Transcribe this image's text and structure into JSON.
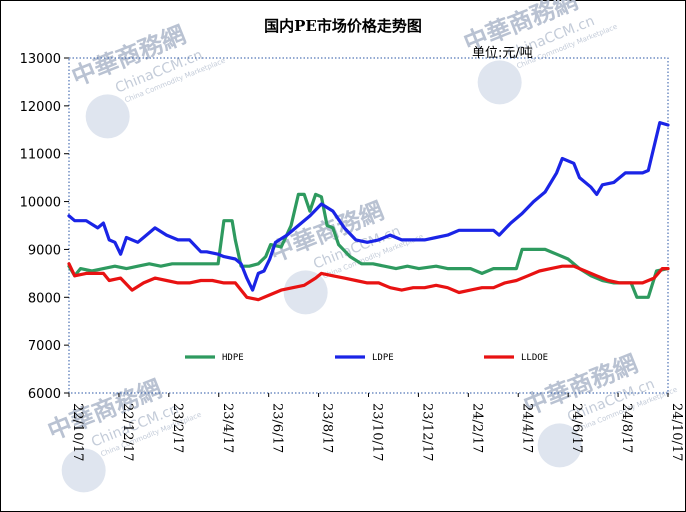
{
  "chart_data": {
    "type": "line",
    "title": "国内PE市场价格走势图",
    "unit_label": "单位:元/吨",
    "ylim": [
      6000,
      13000
    ],
    "yticks": [
      6000,
      7000,
      8000,
      9000,
      10000,
      11000,
      12000,
      13000
    ],
    "xlim": [
      "2022-10-17",
      "2024-10-17"
    ],
    "xtick_labels": [
      "22/10/17",
      "22/12/17",
      "23/2/17",
      "23/4/17",
      "23/6/17",
      "23/8/17",
      "23/10/17",
      "23/12/17",
      "24/2/17",
      "24/4/17",
      "24/6/17",
      "24/8/17",
      "24/10/17"
    ],
    "legend_position": "bottom-inside",
    "grid": false,
    "series": [
      {
        "name": "HDPE",
        "color": "#2e9a5f",
        "points": [
          [
            "2022-10-17",
            8650
          ],
          [
            "2022-10-24",
            8450
          ],
          [
            "2022-10-31",
            8600
          ],
          [
            "2022-11-14",
            8550
          ],
          [
            "2022-11-28",
            8600
          ],
          [
            "2022-12-12",
            8650
          ],
          [
            "2022-12-26",
            8600
          ],
          [
            "2023-01-09",
            8650
          ],
          [
            "2023-01-23",
            8700
          ],
          [
            "2023-02-06",
            8650
          ],
          [
            "2023-02-20",
            8700
          ],
          [
            "2023-03-06",
            8700
          ],
          [
            "2023-03-20",
            8700
          ],
          [
            "2023-04-03",
            8700
          ],
          [
            "2023-04-17",
            8700
          ],
          [
            "2023-04-24",
            9600
          ],
          [
            "2023-05-04",
            9600
          ],
          [
            "2023-05-08",
            9200
          ],
          [
            "2023-05-15",
            8650
          ],
          [
            "2023-05-25",
            8650
          ],
          [
            "2023-06-05",
            8700
          ],
          [
            "2023-06-14",
            8850
          ],
          [
            "2023-06-20",
            9100
          ],
          [
            "2023-07-03",
            9050
          ],
          [
            "2023-07-15",
            9500
          ],
          [
            "2023-07-24",
            10150
          ],
          [
            "2023-07-31",
            10150
          ],
          [
            "2023-08-07",
            9800
          ],
          [
            "2023-08-14",
            10150
          ],
          [
            "2023-08-21",
            10100
          ],
          [
            "2023-08-28",
            9500
          ],
          [
            "2023-09-04",
            9450
          ],
          [
            "2023-09-11",
            9100
          ],
          [
            "2023-09-25",
            8850
          ],
          [
            "2023-10-09",
            8700
          ],
          [
            "2023-10-23",
            8700
          ],
          [
            "2023-11-06",
            8650
          ],
          [
            "2023-11-20",
            8600
          ],
          [
            "2023-12-04",
            8650
          ],
          [
            "2023-12-18",
            8600
          ],
          [
            "2024-01-08",
            8650
          ],
          [
            "2024-01-22",
            8600
          ],
          [
            "2024-02-05",
            8600
          ],
          [
            "2024-02-19",
            8600
          ],
          [
            "2024-03-04",
            8500
          ],
          [
            "2024-03-18",
            8600
          ],
          [
            "2024-04-01",
            8600
          ],
          [
            "2024-04-15",
            8600
          ],
          [
            "2024-04-22",
            9000
          ],
          [
            "2024-05-06",
            9000
          ],
          [
            "2024-05-20",
            9000
          ],
          [
            "2024-06-03",
            8900
          ],
          [
            "2024-06-17",
            8800
          ],
          [
            "2024-07-01",
            8600
          ],
          [
            "2024-07-15",
            8450
          ],
          [
            "2024-07-29",
            8350
          ],
          [
            "2024-08-12",
            8300
          ],
          [
            "2024-08-26",
            8300
          ],
          [
            "2024-09-02",
            8300
          ],
          [
            "2024-09-09",
            8000
          ],
          [
            "2024-09-23",
            8000
          ],
          [
            "2024-10-03",
            8550
          ],
          [
            "2024-10-17",
            8600
          ]
        ]
      },
      {
        "name": "LDPE",
        "color": "#1a24e6",
        "points": [
          [
            "2022-10-17",
            9700
          ],
          [
            "2022-10-24",
            9600
          ],
          [
            "2022-11-07",
            9600
          ],
          [
            "2022-11-21",
            9450
          ],
          [
            "2022-11-28",
            9550
          ],
          [
            "2022-12-05",
            9200
          ],
          [
            "2022-12-12",
            9150
          ],
          [
            "2022-12-19",
            8900
          ],
          [
            "2022-12-26",
            9250
          ],
          [
            "2023-01-09",
            9150
          ],
          [
            "2023-01-16",
            9250
          ],
          [
            "2023-01-30",
            9450
          ],
          [
            "2023-02-13",
            9300
          ],
          [
            "2023-02-27",
            9200
          ],
          [
            "2023-03-13",
            9200
          ],
          [
            "2023-03-27",
            8950
          ],
          [
            "2023-04-03",
            8950
          ],
          [
            "2023-04-17",
            8900
          ],
          [
            "2023-04-24",
            8850
          ],
          [
            "2023-05-08",
            8800
          ],
          [
            "2023-05-15",
            8700
          ],
          [
            "2023-05-22",
            8400
          ],
          [
            "2023-05-29",
            8150
          ],
          [
            "2023-06-05",
            8500
          ],
          [
            "2023-06-12",
            8550
          ],
          [
            "2023-06-19",
            8800
          ],
          [
            "2023-06-26",
            9150
          ],
          [
            "2023-07-10",
            9300
          ],
          [
            "2023-07-24",
            9500
          ],
          [
            "2023-08-07",
            9700
          ],
          [
            "2023-08-21",
            9950
          ],
          [
            "2023-09-04",
            9800
          ],
          [
            "2023-09-18",
            9450
          ],
          [
            "2023-10-02",
            9200
          ],
          [
            "2023-10-16",
            9150
          ],
          [
            "2023-10-30",
            9200
          ],
          [
            "2023-11-13",
            9300
          ],
          [
            "2023-11-27",
            9200
          ],
          [
            "2023-12-11",
            9200
          ],
          [
            "2023-12-25",
            9200
          ],
          [
            "2024-01-08",
            9250
          ],
          [
            "2024-01-22",
            9300
          ],
          [
            "2024-02-05",
            9400
          ],
          [
            "2024-02-19",
            9400
          ],
          [
            "2024-03-04",
            9400
          ],
          [
            "2024-03-18",
            9400
          ],
          [
            "2024-03-25",
            9300
          ],
          [
            "2024-04-08",
            9550
          ],
          [
            "2024-04-22",
            9750
          ],
          [
            "2024-05-06",
            10000
          ],
          [
            "2024-05-20",
            10200
          ],
          [
            "2024-06-03",
            10600
          ],
          [
            "2024-06-10",
            10900
          ],
          [
            "2024-06-24",
            10800
          ],
          [
            "2024-07-01",
            10500
          ],
          [
            "2024-07-15",
            10300
          ],
          [
            "2024-07-22",
            10150
          ],
          [
            "2024-07-29",
            10350
          ],
          [
            "2024-08-12",
            10400
          ],
          [
            "2024-08-26",
            10600
          ],
          [
            "2024-09-02",
            10600
          ],
          [
            "2024-09-16",
            10600
          ],
          [
            "2024-09-23",
            10650
          ],
          [
            "2024-10-07",
            11650
          ],
          [
            "2024-10-17",
            11600
          ]
        ]
      },
      {
        "name": "LLDOE",
        "color": "#e81212",
        "points": [
          [
            "2022-10-17",
            8700
          ],
          [
            "2022-10-24",
            8450
          ],
          [
            "2022-11-07",
            8500
          ],
          [
            "2022-11-21",
            8500
          ],
          [
            "2022-11-28",
            8500
          ],
          [
            "2022-12-05",
            8350
          ],
          [
            "2022-12-19",
            8400
          ],
          [
            "2023-01-02",
            8150
          ],
          [
            "2023-01-16",
            8300
          ],
          [
            "2023-01-30",
            8400
          ],
          [
            "2023-02-13",
            8350
          ],
          [
            "2023-02-27",
            8300
          ],
          [
            "2023-03-13",
            8300
          ],
          [
            "2023-03-27",
            8350
          ],
          [
            "2023-04-10",
            8350
          ],
          [
            "2023-04-24",
            8300
          ],
          [
            "2023-05-08",
            8300
          ],
          [
            "2023-05-22",
            8000
          ],
          [
            "2023-06-05",
            7950
          ],
          [
            "2023-06-19",
            8050
          ],
          [
            "2023-07-03",
            8150
          ],
          [
            "2023-07-17",
            8200
          ],
          [
            "2023-07-31",
            8250
          ],
          [
            "2023-08-14",
            8400
          ],
          [
            "2023-08-21",
            8500
          ],
          [
            "2023-09-04",
            8450
          ],
          [
            "2023-09-18",
            8400
          ],
          [
            "2023-10-02",
            8350
          ],
          [
            "2023-10-16",
            8300
          ],
          [
            "2023-10-30",
            8300
          ],
          [
            "2023-11-13",
            8200
          ],
          [
            "2023-11-27",
            8150
          ],
          [
            "2023-12-11",
            8200
          ],
          [
            "2023-12-25",
            8200
          ],
          [
            "2024-01-08",
            8250
          ],
          [
            "2024-01-22",
            8200
          ],
          [
            "2024-02-05",
            8100
          ],
          [
            "2024-02-19",
            8150
          ],
          [
            "2024-03-04",
            8200
          ],
          [
            "2024-03-18",
            8200
          ],
          [
            "2024-04-01",
            8300
          ],
          [
            "2024-04-15",
            8350
          ],
          [
            "2024-04-29",
            8450
          ],
          [
            "2024-05-13",
            8550
          ],
          [
            "2024-05-27",
            8600
          ],
          [
            "2024-06-10",
            8650
          ],
          [
            "2024-06-24",
            8650
          ],
          [
            "2024-07-08",
            8550
          ],
          [
            "2024-07-22",
            8450
          ],
          [
            "2024-08-05",
            8350
          ],
          [
            "2024-08-19",
            8300
          ],
          [
            "2024-09-02",
            8300
          ],
          [
            "2024-09-16",
            8300
          ],
          [
            "2024-09-30",
            8400
          ],
          [
            "2024-10-10",
            8600
          ],
          [
            "2024-10-17",
            8600
          ]
        ]
      }
    ]
  },
  "watermark": {
    "brand_cn": "中華商務網",
    "brand_en": "ChinaCCM.cn",
    "tagline": "China Commodity Marketplace"
  }
}
